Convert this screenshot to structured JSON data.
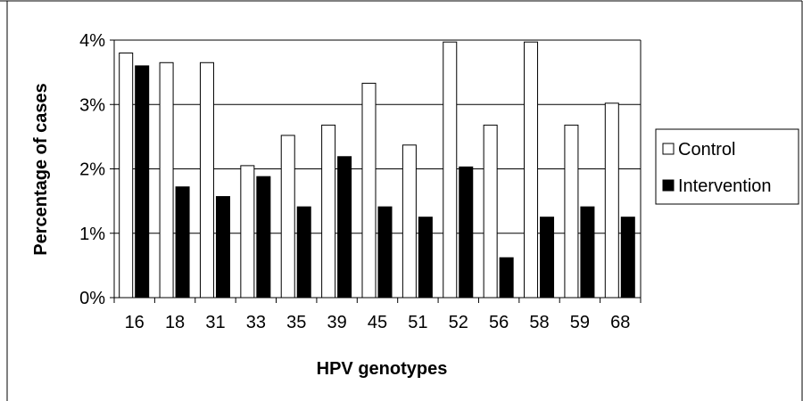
{
  "chart_data": {
    "type": "bar",
    "xlabel": "HPV genotypes",
    "ylabel": "Percentage of cases",
    "categories": [
      "16",
      "18",
      "31",
      "33",
      "35",
      "39",
      "45",
      "51",
      "52",
      "56",
      "58",
      "59",
      "68"
    ],
    "series": [
      {
        "name": "Control",
        "values": [
          3.8,
          3.65,
          3.65,
          2.05,
          2.52,
          2.68,
          3.33,
          2.37,
          3.97,
          2.68,
          3.97,
          2.68,
          3.02
        ]
      },
      {
        "name": "Intervention",
        "values": [
          3.6,
          1.72,
          1.57,
          1.88,
          1.41,
          2.19,
          1.41,
          1.25,
          2.03,
          0.62,
          1.25,
          1.41,
          1.25
        ]
      }
    ],
    "ylim": [
      0,
      4
    ],
    "yticks": [
      0,
      1,
      2,
      3,
      4
    ],
    "ytick_labels": [
      "0%",
      "1%",
      "2%",
      "3%",
      "4%"
    ],
    "grid": true,
    "legend": {
      "placement": "right",
      "entries": [
        "Control",
        "Intervention"
      ]
    },
    "colors": {
      "Control": "#ffffff",
      "Intervention": "#000000",
      "stroke": "#000000"
    }
  }
}
